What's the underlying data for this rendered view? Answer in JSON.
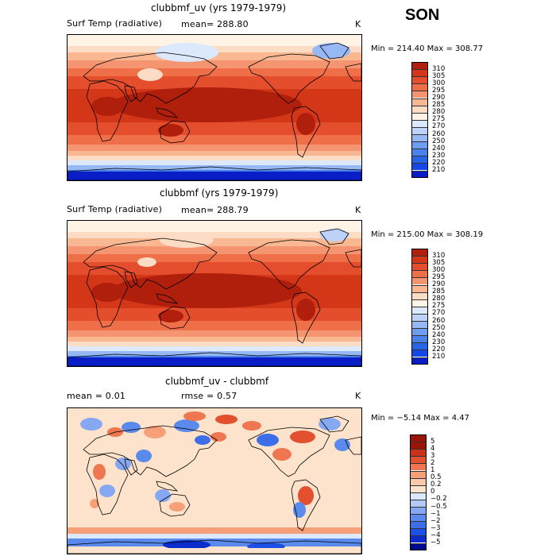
{
  "season": "SON",
  "colors": {
    "abs_scale": [
      "#000a8c",
      "#0a1ec8",
      "#1448e6",
      "#2864e6",
      "#4a82ec",
      "#6e9cf0",
      "#96b8f4",
      "#bcd2f8",
      "#dce8fb",
      "#fff3e6",
      "#fcdcc4",
      "#f9b892",
      "#f59470",
      "#ef7048",
      "#e54e2c",
      "#d43618",
      "#b01e0c",
      "#7a0804"
    ],
    "diff_scale": [
      "#000a8c",
      "#0a2ccc",
      "#1e50e6",
      "#3c6ee8",
      "#5a8aec",
      "#86a8f2",
      "#b4caf6",
      "#dce8fb",
      "#fde3cb",
      "#fccaa8",
      "#f5a078",
      "#ee7650",
      "#e25030",
      "#c8321a",
      "#9a1408"
    ],
    "land_line": "#000000"
  },
  "panels": [
    {
      "title": "clubbmf_uv (yrs 1979-1979)",
      "field": "Surf Temp (radiative)",
      "stat": "mean= 288.80",
      "units": "K",
      "minmax": "Min = 214.40  Max = 308.77"
    },
    {
      "title": "clubbmf (yrs 1979-1979)",
      "field": "Surf Temp (radiative)",
      "stat": "mean= 288.79",
      "units": "K",
      "minmax": "Min = 215.00  Max = 308.19"
    },
    {
      "title": "clubbmf_uv - clubbmf",
      "stat_mean": "mean =    0.01",
      "stat_rmse": "rmse =    0.57",
      "units": "K",
      "minmax": "Min =  −5.14  Max =   4.47"
    }
  ],
  "chart_data": [
    {
      "type": "heatmap",
      "title": "clubbmf_uv (yrs 1979-1979)",
      "variable": "Surf Temp (radiative)",
      "units": "K",
      "mean": 288.8,
      "min": 214.4,
      "max": 308.77,
      "colorbar_levels": [
        "310",
        "305",
        "300",
        "295",
        "290",
        "285",
        "280",
        "275",
        "270",
        "260",
        "250",
        "240",
        "230",
        "220",
        "210"
      ]
    },
    {
      "type": "heatmap",
      "title": "clubbmf (yrs 1979-1979)",
      "variable": "Surf Temp (radiative)",
      "units": "K",
      "mean": 288.79,
      "min": 215.0,
      "max": 308.19,
      "colorbar_levels": [
        "310",
        "305",
        "300",
        "295",
        "290",
        "285",
        "280",
        "275",
        "270",
        "260",
        "250",
        "240",
        "230",
        "220",
        "210"
      ]
    },
    {
      "type": "heatmap",
      "title": "clubbmf_uv - clubbmf",
      "units": "K",
      "mean": 0.01,
      "rmse": 0.57,
      "min": -5.14,
      "max": 4.47,
      "colorbar_levels": [
        "5",
        "4",
        "3",
        "2",
        "1",
        "0.5",
        "0.2",
        "0",
        "−0.2",
        "−0.5",
        "−1",
        "−2",
        "−3",
        "−4",
        "−5"
      ]
    }
  ]
}
